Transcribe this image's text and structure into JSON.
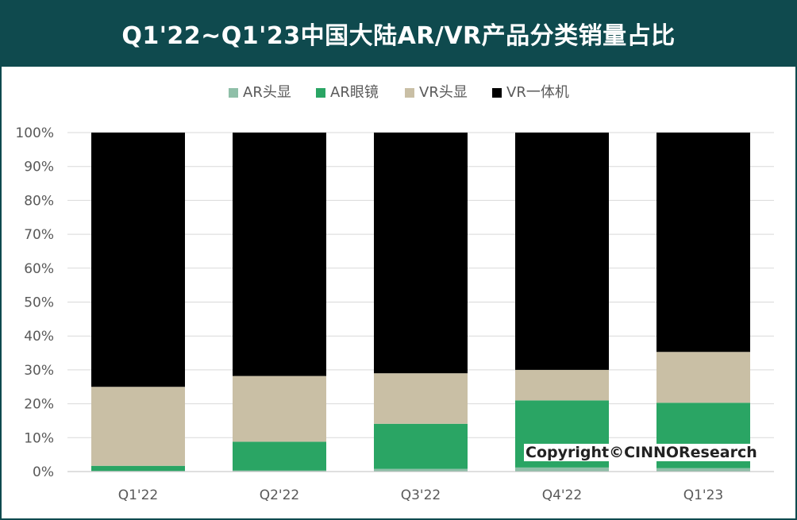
{
  "header": {
    "title": "Q1'22~Q1'23中国大陆AR/VR产品分类销量占比",
    "background": "#0f4a4e"
  },
  "watermark": "Copyright©CINNOResearch",
  "chart_data": {
    "type": "bar",
    "stacked": true,
    "percent": true,
    "title": "Q1'22~Q1'23中国大陆AR/VR产品分类销量占比",
    "xlabel": "",
    "ylabel": "",
    "categories": [
      "Q1'22",
      "Q2'22",
      "Q3'22",
      "Q4'22",
      "Q1'23"
    ],
    "ylim": [
      0,
      100
    ],
    "yticks": [
      "0%",
      "10%",
      "20%",
      "30%",
      "40%",
      "50%",
      "60%",
      "70%",
      "80%",
      "90%",
      "100%"
    ],
    "grid": true,
    "legend_position": "top",
    "series": [
      {
        "name": "AR头显",
        "color": "#8fbfa8",
        "values": [
          0.2,
          0.3,
          0.8,
          1.2,
          1.0
        ]
      },
      {
        "name": "AR眼镜",
        "color": "#2aa564",
        "values": [
          1.5,
          8.5,
          13.3,
          19.8,
          19.3
        ]
      },
      {
        "name": "VR头显",
        "color": "#c9bfa5",
        "values": [
          23.3,
          19.4,
          14.9,
          9.0,
          15.0
        ]
      },
      {
        "name": "VR一体机",
        "color": "#000000",
        "values": [
          75.0,
          71.8,
          71.0,
          70.0,
          64.7
        ]
      }
    ]
  }
}
